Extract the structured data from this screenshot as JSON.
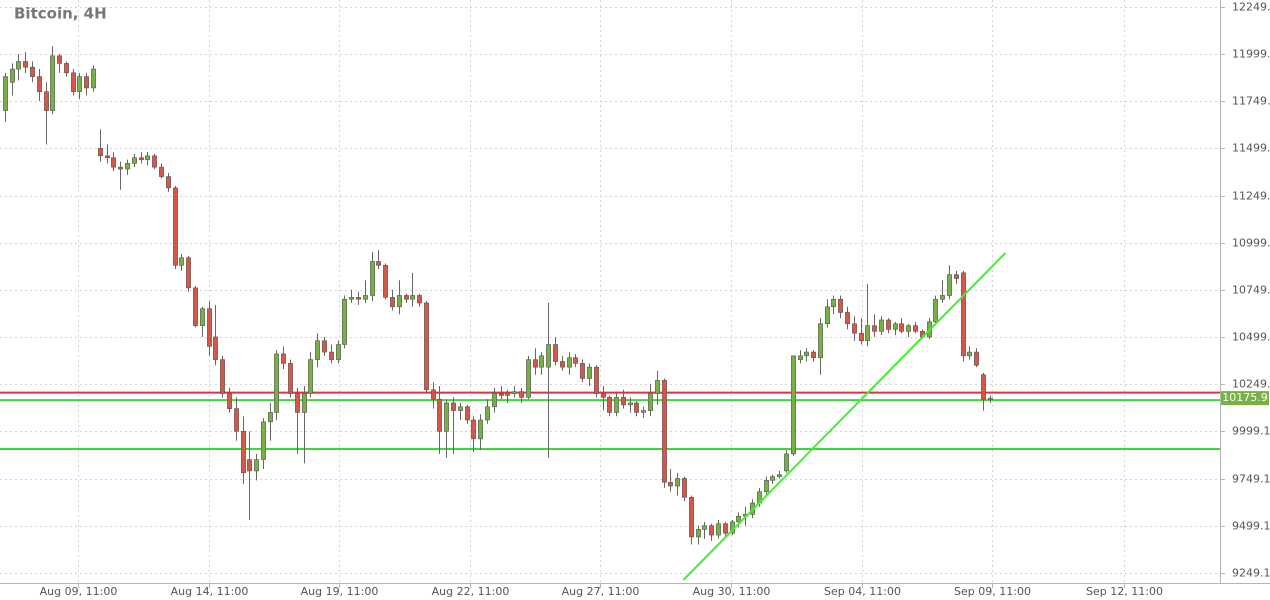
{
  "chart_data": {
    "type": "candlestick",
    "title": "Bitcoin, 4H",
    "ylim": [
      9196,
      12286
    ],
    "yticks": [
      12249.1,
      11999.1,
      11749.1,
      11499.1,
      11249.1,
      10999.1,
      10749.1,
      10499.1,
      10249.1,
      {
        "value": 9999.1,
        "label": "9999.10"
      },
      {
        "value": 9749.1,
        "label": "9749.10"
      },
      {
        "value": 9499.1,
        "label": "9499.10"
      },
      {
        "value": 9249.1,
        "label": "9249.10"
      }
    ],
    "xlim": [
      -0.7,
      178.9
    ],
    "xticks": [
      {
        "value": 10.75,
        "label": "Aug 09, 11:00"
      },
      {
        "value": 30,
        "label": "Aug 14, 11:00"
      },
      {
        "value": 49.2,
        "label": "Aug 19, 11:00"
      },
      {
        "value": 68.5,
        "label": "Aug 22, 11:00"
      },
      {
        "value": 87.6,
        "label": "Aug 27, 11:00"
      },
      {
        "value": 106.9,
        "label": "Aug 30, 11:00"
      },
      {
        "value": 126.2,
        "label": "Sep 04, 11:00"
      },
      {
        "value": 145.4,
        "label": "Sep 09, 11:00"
      },
      {
        "value": 164.7,
        "label": "Sep 12, 11:00"
      }
    ],
    "grid": true,
    "up_color": "#77b043",
    "down_color": "#d4574a",
    "last_price": 10175.9,
    "levels": [
      {
        "value": 10205,
        "color": "#e0303a"
      },
      {
        "value": 10165,
        "color": "#3ad83a"
      },
      {
        "value": 9906,
        "color": "#3ad83a"
      }
    ],
    "trendline": {
      "x": [
        99.9,
        147.3
      ],
      "values": [
        9212,
        10945
      ],
      "color": "#44ee33"
    },
    "candles": [
      {
        "open": 11700,
        "high": 11900,
        "low": 11640,
        "close": 11880
      },
      {
        "open": 11850,
        "high": 11950,
        "low": 11780,
        "close": 11920
      },
      {
        "open": 11920,
        "high": 12000,
        "low": 11860,
        "close": 11960
      },
      {
        "open": 11960,
        "high": 12010,
        "low": 11900,
        "close": 11930
      },
      {
        "open": 11930,
        "high": 11960,
        "low": 11850,
        "close": 11880
      },
      {
        "open": 11880,
        "high": 11920,
        "low": 11750,
        "close": 11800
      },
      {
        "open": 11800,
        "high": 11850,
        "low": 11520,
        "close": 11700
      },
      {
        "open": 11700,
        "high": 12040,
        "low": 11680,
        "close": 11990
      },
      {
        "open": 11990,
        "high": 12000,
        "low": 11900,
        "close": 11950
      },
      {
        "open": 11950,
        "high": 11960,
        "low": 11880,
        "close": 11900
      },
      {
        "open": 11900,
        "high": 11920,
        "low": 11780,
        "close": 11800
      },
      {
        "open": 11800,
        "high": 11900,
        "low": 11760,
        "close": 11880
      },
      {
        "open": 11880,
        "high": 11900,
        "low": 11780,
        "close": 11820
      },
      {
        "open": 11820,
        "high": 11940,
        "low": 11800,
        "close": 11920
      },
      {
        "open": 11500,
        "high": 11600,
        "low": 11430,
        "close": 11460
      },
      {
        "open": 11460,
        "high": 11520,
        "low": 11420,
        "close": 11450
      },
      {
        "open": 11450,
        "high": 11480,
        "low": 11380,
        "close": 11400
      },
      {
        "open": 11400,
        "high": 11430,
        "low": 11280,
        "close": 11390
      },
      {
        "open": 11390,
        "high": 11440,
        "low": 11360,
        "close": 11420
      },
      {
        "open": 11420,
        "high": 11470,
        "low": 11400,
        "close": 11450
      },
      {
        "open": 11450,
        "high": 11480,
        "low": 11420,
        "close": 11440
      },
      {
        "open": 11440,
        "high": 11480,
        "low": 11410,
        "close": 11460
      },
      {
        "open": 11460,
        "high": 11470,
        "low": 11390,
        "close": 11400
      },
      {
        "open": 11400,
        "high": 11420,
        "low": 11340,
        "close": 11350
      },
      {
        "open": 11350,
        "high": 11370,
        "low": 11270,
        "close": 11290
      },
      {
        "open": 11290,
        "high": 11300,
        "low": 10860,
        "close": 10880
      },
      {
        "open": 10880,
        "high": 10940,
        "low": 10850,
        "close": 10920
      },
      {
        "open": 10920,
        "high": 10930,
        "low": 10740,
        "close": 10760
      },
      {
        "open": 10760,
        "high": 10770,
        "low": 10550,
        "close": 10560
      },
      {
        "open": 10560,
        "high": 10660,
        "low": 10500,
        "close": 10650
      },
      {
        "open": 10650,
        "high": 10690,
        "low": 10400,
        "close": 10450
      },
      {
        "open": 10500,
        "high": 10670,
        "low": 10350,
        "close": 10380
      },
      {
        "open": 10380,
        "high": 10400,
        "low": 10180,
        "close": 10200
      },
      {
        "open": 10200,
        "high": 10230,
        "low": 10100,
        "close": 10120
      },
      {
        "open": 10120,
        "high": 10180,
        "low": 9950,
        "close": 10000
      },
      {
        "open": 10000,
        "high": 10080,
        "low": 9720,
        "close": 9780
      },
      {
        "open": 9850,
        "high": 10000,
        "low": 9530,
        "close": 9790
      },
      {
        "open": 9790,
        "high": 9880,
        "low": 9740,
        "close": 9850
      },
      {
        "open": 9850,
        "high": 10070,
        "low": 9800,
        "close": 10050
      },
      {
        "open": 10050,
        "high": 10150,
        "low": 9950,
        "close": 10100
      },
      {
        "open": 10100,
        "high": 10430,
        "low": 10060,
        "close": 10410
      },
      {
        "open": 10410,
        "high": 10450,
        "low": 10330,
        "close": 10360
      },
      {
        "open": 10360,
        "high": 10380,
        "low": 10180,
        "close": 10200
      },
      {
        "open": 10200,
        "high": 10230,
        "low": 9880,
        "close": 10100
      },
      {
        "open": 10100,
        "high": 10240,
        "low": 9830,
        "close": 10200
      },
      {
        "open": 10200,
        "high": 10420,
        "low": 10180,
        "close": 10380
      },
      {
        "open": 10380,
        "high": 10520,
        "low": 10340,
        "close": 10480
      },
      {
        "open": 10480,
        "high": 10500,
        "low": 10400,
        "close": 10420
      },
      {
        "open": 10420,
        "high": 10460,
        "low": 10360,
        "close": 10380
      },
      {
        "open": 10380,
        "high": 10480,
        "low": 10360,
        "close": 10460
      },
      {
        "open": 10460,
        "high": 10720,
        "low": 10440,
        "close": 10700
      },
      {
        "open": 10700,
        "high": 10750,
        "low": 10680,
        "close": 10710
      },
      {
        "open": 10710,
        "high": 10740,
        "low": 10670,
        "close": 10700
      },
      {
        "open": 10700,
        "high": 10800,
        "low": 10680,
        "close": 10720
      },
      {
        "open": 10720,
        "high": 10950,
        "low": 10690,
        "close": 10900
      },
      {
        "open": 10900,
        "high": 10960,
        "low": 10860,
        "close": 10880
      },
      {
        "open": 10880,
        "high": 10890,
        "low": 10700,
        "close": 10710
      },
      {
        "open": 10710,
        "high": 10750,
        "low": 10640,
        "close": 10660
      },
      {
        "open": 10660,
        "high": 10800,
        "low": 10620,
        "close": 10720
      },
      {
        "open": 10720,
        "high": 10730,
        "low": 10680,
        "close": 10700
      },
      {
        "open": 10700,
        "high": 10840,
        "low": 10660,
        "close": 10720
      },
      {
        "open": 10720,
        "high": 10730,
        "low": 10660,
        "close": 10680
      },
      {
        "open": 10680,
        "high": 10690,
        "low": 10200,
        "close": 10220
      },
      {
        "open": 10220,
        "high": 10260,
        "low": 10120,
        "close": 10170
      },
      {
        "open": 10170,
        "high": 10240,
        "low": 9880,
        "close": 10000
      },
      {
        "open": 10000,
        "high": 10170,
        "low": 9860,
        "close": 10150
      },
      {
        "open": 10150,
        "high": 10180,
        "low": 9880,
        "close": 10110
      },
      {
        "open": 10110,
        "high": 10150,
        "low": 10060,
        "close": 10130
      },
      {
        "open": 10130,
        "high": 10140,
        "low": 10040,
        "close": 10060
      },
      {
        "open": 10060,
        "high": 10080,
        "low": 9890,
        "close": 9960
      },
      {
        "open": 9960,
        "high": 10090,
        "low": 9900,
        "close": 10060
      },
      {
        "open": 10060,
        "high": 10170,
        "low": 10040,
        "close": 10130
      },
      {
        "open": 10130,
        "high": 10230,
        "low": 10100,
        "close": 10200
      },
      {
        "open": 10200,
        "high": 10240,
        "low": 10170,
        "close": 10190
      },
      {
        "open": 10190,
        "high": 10220,
        "low": 10150,
        "close": 10200
      },
      {
        "open": 10200,
        "high": 10240,
        "low": 10180,
        "close": 10210
      },
      {
        "open": 10210,
        "high": 10230,
        "low": 10150,
        "close": 10180
      },
      {
        "open": 10180,
        "high": 10400,
        "low": 10170,
        "close": 10380
      },
      {
        "open": 10380,
        "high": 10440,
        "low": 10300,
        "close": 10340
      },
      {
        "open": 10340,
        "high": 10420,
        "low": 10300,
        "close": 10400
      },
      {
        "open": 10340,
        "high": 10680,
        "low": 9860,
        "close": 10460
      },
      {
        "open": 10460,
        "high": 10500,
        "low": 10350,
        "close": 10370
      },
      {
        "open": 10370,
        "high": 10400,
        "low": 10320,
        "close": 10340
      },
      {
        "open": 10340,
        "high": 10420,
        "low": 10300,
        "close": 10390
      },
      {
        "open": 10390,
        "high": 10410,
        "low": 10340,
        "close": 10360
      },
      {
        "open": 10360,
        "high": 10380,
        "low": 10260,
        "close": 10280
      },
      {
        "open": 10280,
        "high": 10360,
        "low": 10240,
        "close": 10340
      },
      {
        "open": 10340,
        "high": 10350,
        "low": 10180,
        "close": 10200
      },
      {
        "open": 10200,
        "high": 10240,
        "low": 10110,
        "close": 10180
      },
      {
        "open": 10180,
        "high": 10190,
        "low": 10080,
        "close": 10100
      },
      {
        "open": 10100,
        "high": 10200,
        "low": 10080,
        "close": 10180
      },
      {
        "open": 10180,
        "high": 10220,
        "low": 10120,
        "close": 10140
      },
      {
        "open": 10140,
        "high": 10180,
        "low": 10100,
        "close": 10150
      },
      {
        "open": 10150,
        "high": 10160,
        "low": 10080,
        "close": 10100
      },
      {
        "open": 10100,
        "high": 10130,
        "low": 10070,
        "close": 10110
      },
      {
        "open": 10110,
        "high": 10250,
        "low": 10080,
        "close": 10200
      },
      {
        "open": 10200,
        "high": 10320,
        "low": 10140,
        "close": 10270
      },
      {
        "open": 10270,
        "high": 10280,
        "low": 9700,
        "close": 9730
      },
      {
        "open": 9730,
        "high": 9800,
        "low": 9680,
        "close": 9710
      },
      {
        "open": 9710,
        "high": 9780,
        "low": 9660,
        "close": 9750
      },
      {
        "open": 9750,
        "high": 9760,
        "low": 9630,
        "close": 9650
      },
      {
        "open": 9650,
        "high": 9660,
        "low": 9400,
        "close": 9440
      },
      {
        "open": 9440,
        "high": 9500,
        "low": 9400,
        "close": 9480
      },
      {
        "open": 9480,
        "high": 9520,
        "low": 9430,
        "close": 9500
      },
      {
        "open": 9500,
        "high": 9510,
        "low": 9420,
        "close": 9450
      },
      {
        "open": 9450,
        "high": 9530,
        "low": 9430,
        "close": 9510
      },
      {
        "open": 9510,
        "high": 9520,
        "low": 9440,
        "close": 9460
      },
      {
        "open": 9460,
        "high": 9530,
        "low": 9450,
        "close": 9520
      },
      {
        "open": 9520,
        "high": 9570,
        "low": 9490,
        "close": 9550
      },
      {
        "open": 9550,
        "high": 9600,
        "low": 9500,
        "close": 9560
      },
      {
        "open": 9560,
        "high": 9640,
        "low": 9540,
        "close": 9620
      },
      {
        "open": 9620,
        "high": 9700,
        "low": 9600,
        "close": 9680
      },
      {
        "open": 9680,
        "high": 9760,
        "low": 9660,
        "close": 9740
      },
      {
        "open": 9740,
        "high": 9770,
        "low": 9720,
        "close": 9760
      },
      {
        "open": 9760,
        "high": 9790,
        "low": 9750,
        "close": 9770
      },
      {
        "open": 9790,
        "high": 9900,
        "low": 9780,
        "close": 9880
      },
      {
        "open": 9880,
        "high": 10400,
        "low": 9870,
        "close": 10400
      },
      {
        "open": 10380,
        "high": 10430,
        "low": 10360,
        "close": 10400
      },
      {
        "open": 10400,
        "high": 10440,
        "low": 10370,
        "close": 10420
      },
      {
        "open": 10420,
        "high": 10430,
        "low": 10370,
        "close": 10390
      },
      {
        "open": 10390,
        "high": 10600,
        "low": 10300,
        "close": 10570
      },
      {
        "open": 10570,
        "high": 10700,
        "low": 10550,
        "close": 10660
      },
      {
        "open": 10660,
        "high": 10720,
        "low": 10620,
        "close": 10700
      },
      {
        "open": 10700,
        "high": 10720,
        "low": 10600,
        "close": 10630
      },
      {
        "open": 10630,
        "high": 10660,
        "low": 10540,
        "close": 10570
      },
      {
        "open": 10570,
        "high": 10610,
        "low": 10480,
        "close": 10520
      },
      {
        "open": 10520,
        "high": 10600,
        "low": 10460,
        "close": 10480
      },
      {
        "open": 10480,
        "high": 10780,
        "low": 10450,
        "close": 10560
      },
      {
        "open": 10560,
        "high": 10620,
        "low": 10500,
        "close": 10530
      },
      {
        "open": 10530,
        "high": 10610,
        "low": 10510,
        "close": 10590
      },
      {
        "open": 10590,
        "high": 10600,
        "low": 10520,
        "close": 10540
      },
      {
        "open": 10540,
        "high": 10580,
        "low": 10510,
        "close": 10570
      },
      {
        "open": 10570,
        "high": 10600,
        "low": 10520,
        "close": 10530
      },
      {
        "open": 10530,
        "high": 10570,
        "low": 10500,
        "close": 10560
      },
      {
        "open": 10560,
        "high": 10580,
        "low": 10520,
        "close": 10530
      },
      {
        "open": 10530,
        "high": 10540,
        "low": 10490,
        "close": 10500
      },
      {
        "open": 10500,
        "high": 10600,
        "low": 10490,
        "close": 10580
      },
      {
        "open": 10580,
        "high": 10720,
        "low": 10570,
        "close": 10700
      },
      {
        "open": 10700,
        "high": 10800,
        "low": 10680,
        "close": 10720
      },
      {
        "open": 10720,
        "high": 10880,
        "low": 10700,
        "close": 10830
      },
      {
        "open": 10830,
        "high": 10850,
        "low": 10780,
        "close": 10810
      },
      {
        "open": 10840,
        "high": 10850,
        "low": 10370,
        "close": 10400
      },
      {
        "open": 10400,
        "high": 10450,
        "low": 10380,
        "close": 10420
      },
      {
        "open": 10420,
        "high": 10440,
        "low": 10340,
        "close": 10350
      },
      {
        "open": 10300,
        "high": 10310,
        "low": 10110,
        "close": 10170
      },
      {
        "open": 10170,
        "high": 10190,
        "low": 10150,
        "close": 10175.9
      }
    ]
  }
}
